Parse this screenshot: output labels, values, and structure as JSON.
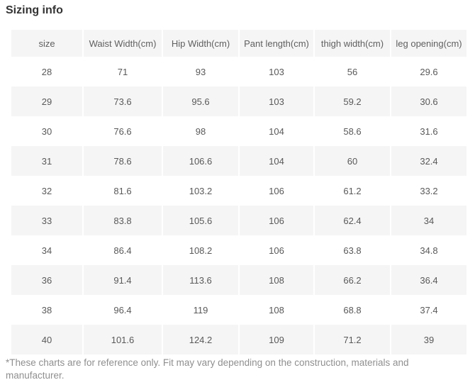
{
  "title": "Sizing info",
  "table": {
    "columns": [
      "size",
      "Waist Width(cm)",
      "Hip Width(cm)",
      "Pant length(cm)",
      "thigh width(cm)",
      "leg opening(cm)"
    ],
    "rows": [
      [
        "28",
        "71",
        "93",
        "103",
        "56",
        "29.6"
      ],
      [
        "29",
        "73.6",
        "95.6",
        "103",
        "59.2",
        "30.6"
      ],
      [
        "30",
        "76.6",
        "98",
        "104",
        "58.6",
        "31.6"
      ],
      [
        "31",
        "78.6",
        "106.6",
        "104",
        "60",
        "32.4"
      ],
      [
        "32",
        "81.6",
        "103.2",
        "106",
        "61.2",
        "33.2"
      ],
      [
        "33",
        "83.8",
        "105.6",
        "106",
        "62.4",
        "34"
      ],
      [
        "34",
        "86.4",
        "108.2",
        "106",
        "63.8",
        "34.8"
      ],
      [
        "36",
        "91.4",
        "113.6",
        "108",
        "66.2",
        "36.4"
      ],
      [
        "38",
        "96.4",
        "119",
        "108",
        "68.8",
        "37.4"
      ],
      [
        "40",
        "101.6",
        "124.2",
        "109",
        "71.2",
        "39"
      ]
    ]
  },
  "footnote": "*These charts are for reference only. Fit may vary depending on the construction, materials and manufacturer.",
  "colors": {
    "stripe": "#f5f5f5",
    "cell_text": "#595959",
    "title_text": "#333333",
    "footnote_text": "#8f8f8f"
  }
}
